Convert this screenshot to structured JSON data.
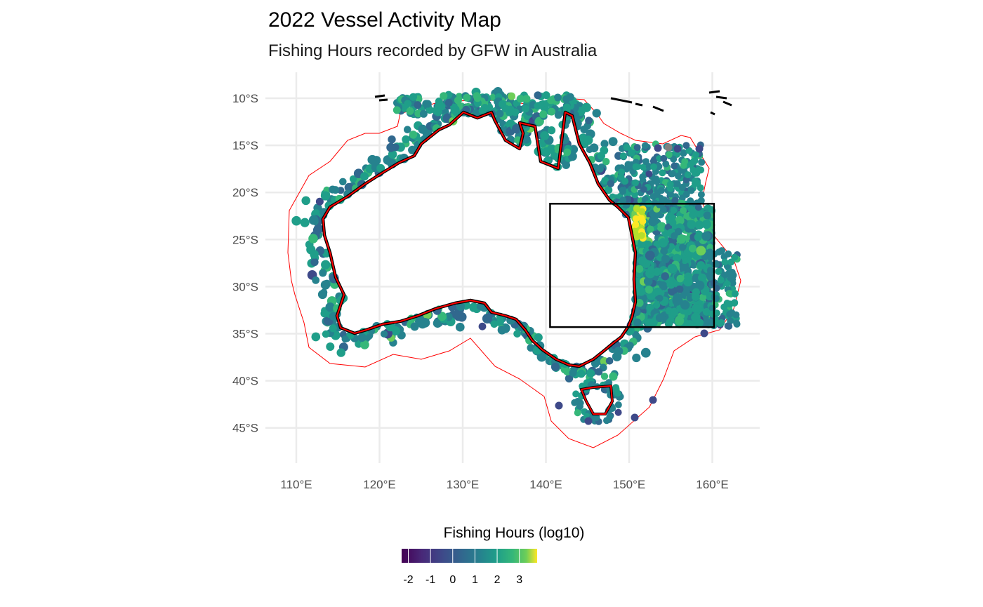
{
  "title": "2022 Vessel Activity Map",
  "subtitle": "Fishing Hours recorded by GFW in Australia",
  "chart_data": {
    "type": "scatter",
    "map": "Australia",
    "x_ticks": [
      "110°E",
      "120°E",
      "130°E",
      "140°E",
      "150°E",
      "160°E"
    ],
    "y_ticks": [
      "10°S",
      "15°S",
      "20°S",
      "25°S",
      "30°S",
      "35°S",
      "40°S",
      "45°S"
    ],
    "xlim": [
      107,
      163
    ],
    "ylim": [
      -49,
      -7
    ],
    "grid": true,
    "highlight_box": {
      "lon": [
        140.5,
        160.2
      ],
      "lat": [
        -34.3,
        -21.2
      ]
    },
    "legend": {
      "title": "Fishing Hours (log10)",
      "position": "bottom",
      "ticks": [
        "-2",
        "-1",
        "0",
        "1",
        "2",
        "3"
      ],
      "range": [
        -2.3,
        3.8
      ],
      "palette": "viridis"
    },
    "points_description": "Vessel positions coloured by log10 fishing hours, densely covering the Australian coastline and EEZ; highest values (2-3) off the east coast near 151°E, 21-27°S.",
    "colors": {
      "eez_outline": "#ff0000",
      "coastline": "#000000",
      "box": "#000000",
      "grid": "#ebebeb",
      "na_points": "#808080"
    }
  }
}
